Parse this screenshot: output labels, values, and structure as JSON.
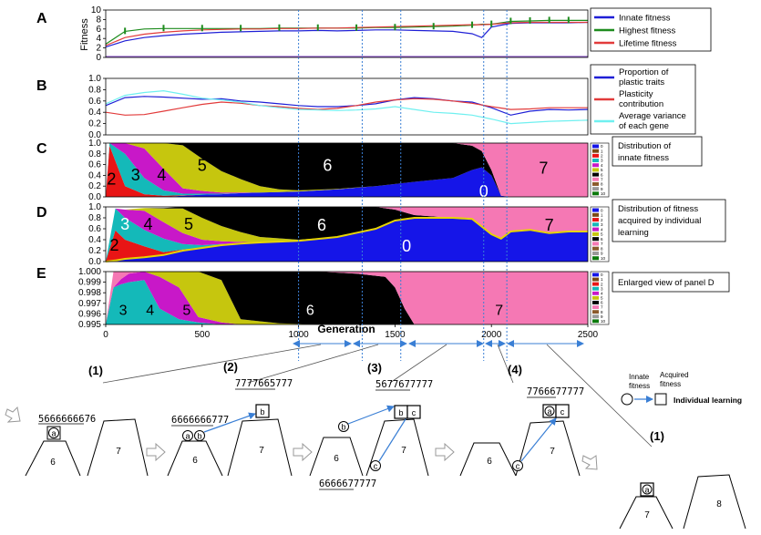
{
  "panels": {
    "A": {
      "letter": "A",
      "ylabel": "Fitness",
      "ylim": [
        0,
        10
      ],
      "yticks": [
        "0",
        "2",
        "4",
        "6",
        "8",
        "10"
      ],
      "legend": [
        {
          "label": "Innate fitness",
          "color": "#1f1fd6"
        },
        {
          "label": "Highest fitness",
          "color": "#1e8c1e"
        },
        {
          "label": "Lifetime fitness",
          "color": "#e23b3b"
        }
      ]
    },
    "B": {
      "letter": "B",
      "ylim": [
        0,
        1
      ],
      "yticks": [
        "0.0",
        "0.2",
        "0.4",
        "0.6",
        "0.8",
        "1.0"
      ],
      "legend": [
        {
          "label": "Proportion of",
          "label2": "plastic traits",
          "color": "#1f1fd6"
        },
        {
          "label": "Plasticity",
          "label2": "contribution",
          "color": "#e23b3b"
        },
        {
          "label": "Average variance",
          "label2": "of each gene",
          "color": "#6ff0f0"
        }
      ]
    },
    "C": {
      "letter": "C",
      "ylim": [
        0,
        1
      ],
      "yticks": [
        "0.0",
        "0.2",
        "0.4",
        "0.6",
        "0.8",
        "1.0"
      ],
      "annotation": [
        "Distribution of",
        "innate fitness"
      ],
      "region_labels": [
        "2",
        "3",
        "4",
        "5",
        "6",
        "0",
        "7"
      ]
    },
    "D": {
      "letter": "D",
      "ylim": [
        0,
        1
      ],
      "yticks": [
        "0.0",
        "0.2",
        "0.4",
        "0.6",
        "0.8",
        "1.0"
      ],
      "annotation": [
        "Distribution of fitness",
        "acquired by individual",
        "learning"
      ],
      "region_labels": [
        "3",
        "4",
        "5",
        "2",
        "6",
        "0",
        "7"
      ]
    },
    "E": {
      "letter": "E",
      "ylim": [
        0.995,
        1.0
      ],
      "yticks": [
        "0.995",
        "0.996",
        "0.997",
        "0.998",
        "0.999",
        "1.000"
      ],
      "annotation": [
        "Enlarged view of panel D"
      ],
      "region_labels": [
        "3",
        "4",
        "5",
        "6",
        "7"
      ]
    }
  },
  "class_legend": {
    "labels": [
      "0",
      "1",
      "2",
      "3",
      "4",
      "5",
      "6",
      "7",
      "8",
      "9",
      "10"
    ],
    "colors": [
      "#1515e8",
      "#7a4a14",
      "#e81515",
      "#14b9b9",
      "#c818c8",
      "#c6c60e",
      "#000000",
      "#f578b4",
      "#8b5a2b",
      "#999999",
      "#0c7a0c"
    ]
  },
  "x_axis": {
    "label": "Generation",
    "ticks": [
      "0",
      "500",
      "1000",
      "1500",
      "2000",
      "2500"
    ],
    "xlim": [
      0,
      2500
    ]
  },
  "chart_data": [
    {
      "type": "line",
      "panel": "A",
      "x": [
        0,
        100,
        200,
        300,
        400,
        500,
        600,
        700,
        800,
        900,
        1000,
        1100,
        1200,
        1300,
        1400,
        1500,
        1600,
        1700,
        1800,
        1900,
        1950,
        2000,
        2100,
        2200,
        2300,
        2400,
        2500
      ],
      "series": [
        {
          "name": "Innate fitness",
          "values": [
            2.2,
            3.5,
            4.2,
            4.6,
            4.9,
            5.1,
            5.3,
            5.4,
            5.5,
            5.6,
            5.6,
            5.7,
            5.6,
            5.7,
            5.8,
            5.8,
            5.7,
            5.6,
            5.5,
            5.0,
            4.2,
            6.4,
            7.2,
            7.3,
            7.3,
            7.3,
            7.4
          ]
        },
        {
          "name": "Highest fitness",
          "values": [
            2.8,
            5.5,
            6.0,
            6.1,
            6.1,
            6.1,
            6.1,
            6.1,
            6.1,
            6.2,
            6.2,
            6.2,
            6.2,
            6.2,
            6.3,
            6.3,
            6.4,
            6.5,
            6.6,
            6.8,
            7.0,
            7.0,
            7.6,
            7.7,
            7.8,
            7.8,
            7.8
          ]
        },
        {
          "name": "Lifetime fitness",
          "values": [
            2.5,
            4.2,
            4.9,
            5.3,
            5.6,
            5.8,
            5.9,
            6.0,
            6.0,
            6.1,
            6.1,
            6.2,
            6.2,
            6.3,
            6.4,
            6.5,
            6.6,
            6.7,
            6.8,
            6.9,
            6.9,
            7.0,
            7.3,
            7.4,
            7.4,
            7.4,
            7.4
          ]
        }
      ]
    },
    {
      "type": "line",
      "panel": "B",
      "x": [
        0,
        100,
        200,
        300,
        400,
        500,
        600,
        700,
        800,
        900,
        1000,
        1100,
        1200,
        1300,
        1400,
        1500,
        1600,
        1700,
        1800,
        1900,
        2000,
        2100,
        2200,
        2300,
        2400,
        2500
      ],
      "series": [
        {
          "name": "Proportion of plastic traits",
          "values": [
            0.52,
            0.66,
            0.68,
            0.67,
            0.65,
            0.63,
            0.64,
            0.6,
            0.58,
            0.55,
            0.52,
            0.5,
            0.5,
            0.52,
            0.55,
            0.62,
            0.66,
            0.64,
            0.6,
            0.58,
            0.48,
            0.35,
            0.42,
            0.45,
            0.44,
            0.45
          ]
        },
        {
          "name": "Plasticity contribution",
          "values": [
            0.4,
            0.35,
            0.36,
            0.42,
            0.48,
            0.54,
            0.58,
            0.56,
            0.52,
            0.5,
            0.47,
            0.45,
            0.47,
            0.52,
            0.58,
            0.62,
            0.64,
            0.63,
            0.6,
            0.56,
            0.5,
            0.45,
            0.46,
            0.48,
            0.48,
            0.48
          ]
        },
        {
          "name": "Average variance of each gene",
          "values": [
            0.55,
            0.7,
            0.75,
            0.78,
            0.72,
            0.65,
            0.62,
            0.58,
            0.52,
            0.48,
            0.45,
            0.44,
            0.43,
            0.44,
            0.46,
            0.5,
            0.45,
            0.4,
            0.38,
            0.35,
            0.28,
            0.2,
            0.22,
            0.24,
            0.25,
            0.26
          ]
        }
      ]
    },
    {
      "type": "area",
      "panel": "C",
      "stacked": true,
      "x": [
        0,
        20,
        100,
        200,
        300,
        400,
        500,
        600,
        700,
        800,
        900,
        1000,
        1200,
        1400,
        1600,
        1800,
        1900,
        1950,
        2000,
        2050,
        2100,
        2500
      ],
      "series": [
        {
          "name": "0",
          "values": [
            0.0,
            0.0,
            0.0,
            0.0,
            0.0,
            0.02,
            0.04,
            0.05,
            0.07,
            0.08,
            0.09,
            0.1,
            0.14,
            0.2,
            0.28,
            0.35,
            0.5,
            0.55,
            0.4,
            0.02,
            0.0,
            0.0
          ]
        },
        {
          "name": "2",
          "values": [
            0.0,
            0.95,
            0.2,
            0.05,
            0.02,
            0.01,
            0.0,
            0.0,
            0.0,
            0.0,
            0.0,
            0.0,
            0.0,
            0.0,
            0.0,
            0.0,
            0.0,
            0.0,
            0.0,
            0.0,
            0.0,
            0.0
          ]
        },
        {
          "name": "3",
          "values": [
            0.0,
            0.05,
            0.6,
            0.3,
            0.1,
            0.03,
            0.02,
            0.01,
            0.0,
            0.0,
            0.0,
            0.0,
            0.0,
            0.0,
            0.0,
            0.0,
            0.0,
            0.0,
            0.0,
            0.0,
            0.0,
            0.0
          ]
        },
        {
          "name": "4",
          "values": [
            0.0,
            0.0,
            0.2,
            0.55,
            0.4,
            0.1,
            0.05,
            0.02,
            0.01,
            0.0,
            0.0,
            0.0,
            0.0,
            0.0,
            0.0,
            0.0,
            0.0,
            0.0,
            0.0,
            0.0,
            0.0,
            0.0
          ]
        },
        {
          "name": "5",
          "values": [
            0.0,
            0.0,
            0.0,
            0.1,
            0.48,
            0.8,
            0.6,
            0.4,
            0.25,
            0.12,
            0.05,
            0.02,
            0.01,
            0.0,
            0.0,
            0.0,
            0.0,
            0.0,
            0.0,
            0.0,
            0.0,
            0.0
          ]
        },
        {
          "name": "6",
          "values": [
            0.0,
            0.0,
            0.0,
            0.0,
            0.0,
            0.04,
            0.29,
            0.52,
            0.67,
            0.8,
            0.86,
            0.88,
            0.85,
            0.8,
            0.72,
            0.65,
            0.45,
            0.3,
            0.1,
            0.0,
            0.0,
            0.0
          ]
        },
        {
          "name": "7",
          "values": [
            0.0,
            0.0,
            0.0,
            0.0,
            0.0,
            0.0,
            0.0,
            0.0,
            0.0,
            0.0,
            0.0,
            0.0,
            0.0,
            0.0,
            0.0,
            0.0,
            0.05,
            0.15,
            0.5,
            0.98,
            1.0,
            1.0
          ]
        }
      ]
    },
    {
      "type": "area",
      "panel": "D",
      "stacked": true,
      "x": [
        0,
        50,
        100,
        200,
        300,
        400,
        500,
        600,
        700,
        800,
        1000,
        1200,
        1400,
        1500,
        1600,
        1800,
        1900,
        2000,
        2050,
        2100,
        2200,
        2300,
        2400,
        2500
      ],
      "series": [
        {
          "name": "0",
          "values": [
            0.0,
            0.02,
            0.05,
            0.08,
            0.12,
            0.2,
            0.25,
            0.3,
            0.33,
            0.35,
            0.38,
            0.45,
            0.6,
            0.75,
            0.8,
            0.8,
            0.78,
            0.5,
            0.42,
            0.55,
            0.58,
            0.52,
            0.55,
            0.55
          ]
        },
        {
          "name": "2",
          "values": [
            0.0,
            0.55,
            0.35,
            0.2,
            0.05,
            0.02,
            0.0,
            0.0,
            0.0,
            0.0,
            0.0,
            0.0,
            0.0,
            0.0,
            0.0,
            0.0,
            0.0,
            0.0,
            0.0,
            0.0,
            0.0,
            0.0,
            0.0,
            0.0
          ]
        },
        {
          "name": "3",
          "values": [
            0.0,
            0.4,
            0.4,
            0.3,
            0.25,
            0.1,
            0.05,
            0.02,
            0.01,
            0.0,
            0.0,
            0.0,
            0.0,
            0.0,
            0.0,
            0.0,
            0.0,
            0.0,
            0.0,
            0.0,
            0.0,
            0.0,
            0.0,
            0.0
          ]
        },
        {
          "name": "4",
          "values": [
            0.0,
            0.0,
            0.15,
            0.35,
            0.3,
            0.2,
            0.1,
            0.05,
            0.02,
            0.0,
            0.0,
            0.0,
            0.0,
            0.0,
            0.0,
            0.0,
            0.0,
            0.0,
            0.0,
            0.0,
            0.0,
            0.0,
            0.0,
            0.0
          ]
        },
        {
          "name": "5",
          "values": [
            0.0,
            0.0,
            0.0,
            0.05,
            0.25,
            0.45,
            0.4,
            0.28,
            0.18,
            0.1,
            0.02,
            0.0,
            0.0,
            0.0,
            0.0,
            0.0,
            0.0,
            0.0,
            0.0,
            0.0,
            0.0,
            0.0,
            0.0,
            0.0
          ]
        },
        {
          "name": "6",
          "values": [
            0.0,
            0.0,
            0.0,
            0.0,
            0.01,
            0.03,
            0.2,
            0.35,
            0.46,
            0.55,
            0.6,
            0.55,
            0.4,
            0.2,
            0.05,
            0.0,
            0.0,
            0.0,
            0.0,
            0.0,
            0.0,
            0.0,
            0.0,
            0.0
          ]
        },
        {
          "name": "7",
          "values": [
            0.0,
            0.0,
            0.0,
            0.0,
            0.0,
            0.0,
            0.0,
            0.0,
            0.0,
            0.0,
            0.0,
            0.0,
            0.0,
            0.05,
            0.15,
            0.2,
            0.22,
            0.5,
            0.58,
            0.45,
            0.42,
            0.48,
            0.45,
            0.45
          ]
        }
      ]
    },
    {
      "type": "area",
      "panel": "E",
      "stacked": true,
      "x": [
        0,
        40,
        80,
        120,
        200,
        280,
        380,
        480,
        600,
        700,
        900,
        1100,
        1300,
        1450,
        1500,
        1550,
        1600,
        2500
      ],
      "series": [
        {
          "name": "2",
          "values": [
            0.995,
            0.995,
            0.995,
            0.995,
            0.995,
            0.995,
            0.995,
            0.995,
            0.995,
            0.995,
            0.995,
            0.995,
            0.995,
            0.995,
            0.995,
            0.995,
            0.995,
            0.995
          ]
        },
        {
          "name": "3",
          "values": [
            0.0,
            0.0035,
            0.0038,
            0.004,
            0.0042,
            0.0015,
            0.0005,
            0.0002,
            0.0,
            0.0,
            0.0,
            0.0,
            0.0,
            0.0,
            0.0,
            0.0,
            0.0,
            0.0
          ]
        },
        {
          "name": "4",
          "values": [
            0.0,
            0.0,
            0.0005,
            0.0008,
            0.0008,
            0.003,
            0.003,
            0.0005,
            0.0002,
            0.0,
            0.0,
            0.0,
            0.0,
            0.0,
            0.0,
            0.0,
            0.0,
            0.0
          ]
        },
        {
          "name": "5",
          "values": [
            0.0,
            0.0,
            0.0,
            0.0,
            0.0,
            0.0005,
            0.0015,
            0.0043,
            0.004,
            0.0005,
            0.0001,
            0.0,
            0.0,
            0.0,
            0.0,
            0.0,
            0.0,
            0.0
          ]
        },
        {
          "name": "6",
          "values": [
            0.0,
            0.0,
            0.0,
            0.0,
            0.0,
            0.0,
            0.0,
            0.0,
            0.0008,
            0.0045,
            0.0049,
            0.005,
            0.0048,
            0.0045,
            0.0035,
            0.0015,
            0.0,
            0.0
          ]
        },
        {
          "name": "7",
          "values": [
            0.0,
            0.0015,
            0.0007,
            0.0002,
            0.0,
            0.0,
            0.0,
            0.0,
            0.0,
            0.0,
            0.0,
            0.0,
            0.0002,
            0.0005,
            0.0015,
            0.0035,
            0.005,
            0.005
          ]
        }
      ]
    }
  ],
  "vlines_generation": [
    1000,
    1330,
    1530,
    1960,
    2080
  ],
  "stages": [
    {
      "label": "(1)",
      "seq": "5666666676",
      "seq_underline": "56666666",
      "peaks": [
        "6",
        "7"
      ],
      "circles": [
        "a"
      ],
      "squares": [],
      "inner": [
        "a"
      ]
    },
    {
      "label": "(2)",
      "seq_top": "7777665777",
      "seq_top_underline": "7777665",
      "seq": "6666666777",
      "seq_underline": "6666666",
      "peaks": [
        "6",
        "7"
      ],
      "circles": [
        "a",
        "b"
      ],
      "squares": [
        "b"
      ]
    },
    {
      "label": "(3)",
      "seq_top": "5677677777",
      "seq_top_underline": "567767",
      "seq": "6666677777",
      "seq_underline": "66666",
      "peaks": [
        "6",
        "7"
      ],
      "circles": [
        "b",
        "c"
      ],
      "squares": [
        "b",
        "c"
      ]
    },
    {
      "label": "(4)",
      "seq_top": "7766677777",
      "seq_top_underline": "77666",
      "peaks": [
        "6",
        "7"
      ],
      "circles": [
        "c"
      ],
      "squares": [
        "a",
        "c"
      ]
    },
    {
      "label": "(1)",
      "peaks": [
        "7",
        "8"
      ],
      "squares": [
        "a"
      ]
    }
  ],
  "key": {
    "innate": [
      "Innate",
      "fitness"
    ],
    "acquired": [
      "Acquired",
      "fitness"
    ],
    "learning": "Individual learning"
  }
}
